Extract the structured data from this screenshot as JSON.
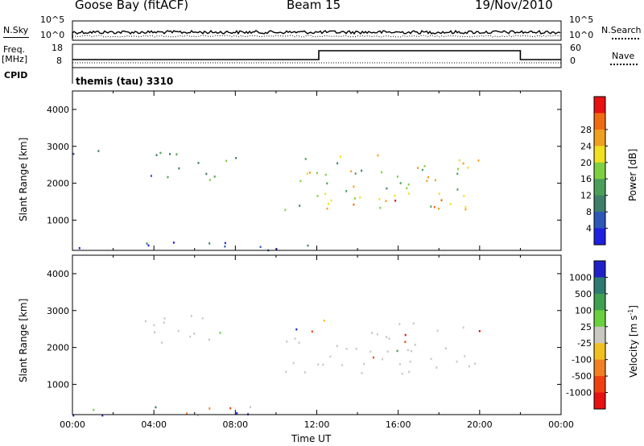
{
  "header": {
    "station": "Goose Bay (fitACF)",
    "beam": "Beam 15",
    "date": "19/Nov/2010"
  },
  "top_panels": {
    "nsky_label": "N.Sky",
    "nsky_ticks": [
      "10^5",
      "10^0"
    ],
    "nsearch_label": "N.Search",
    "nsearch_ticks": [
      "10^5",
      "10^0"
    ],
    "freq_label": "Freq.",
    "freq_unit": "[MHz]",
    "freq_ticks": [
      "18",
      "8"
    ],
    "nave_label": "Nave",
    "nave_ticks": [
      "60",
      "0"
    ],
    "cpid_label": "CPID",
    "cpid_value": "themis (tau) 3310"
  },
  "chart_data": [
    {
      "type": "heatmap",
      "title": "",
      "ylabel": "Slant Range [km]",
      "ylim": [
        180,
        4500
      ],
      "yticks": [
        "1000",
        "2000",
        "3000",
        "4000"
      ],
      "xlim": [
        "00:00",
        "24:00"
      ],
      "colorbar_label": "Power [dB]",
      "colorbar_ticks": [
        "4",
        "8",
        "12",
        "16",
        "20",
        "24",
        "28"
      ],
      "colorscale": [
        "#1f1fe0",
        "#2f57b8",
        "#3f7f6a",
        "#4aa05a",
        "#7fd040",
        "#f0e020",
        "#f0a020",
        "#f06a10",
        "#e81010"
      ],
      "features": [
        {
          "t_start": 0.0,
          "t_end": 11.8,
          "range_min": 180,
          "range_max": 450,
          "level": "low"
        },
        {
          "t_start": 3.0,
          "t_end": 8.0,
          "range_min": 2100,
          "range_max": 2900,
          "level": "low-mid"
        },
        {
          "t_start": 0.0,
          "t_end": 1.5,
          "range_min": 2700,
          "range_max": 3100,
          "level": "low"
        },
        {
          "t_start": 10.3,
          "t_end": 20.0,
          "range_min": 1300,
          "range_max": 2800,
          "level": "mid-high"
        },
        {
          "t_start": 12.0,
          "t_end": 18.5,
          "range_min": 1300,
          "range_max": 1800,
          "level": "high"
        }
      ]
    },
    {
      "type": "heatmap",
      "title": "",
      "ylabel": "Slant Range [km]",
      "xlabel": "Time UT",
      "ylim": [
        180,
        4500
      ],
      "yticks": [
        "1000",
        "2000",
        "3000",
        "4000"
      ],
      "xticks": [
        "00:00",
        "04:00",
        "08:00",
        "12:00",
        "16:00",
        "20:00",
        "00:00"
      ],
      "colorbar_label": "Velocity [m s",
      "colorbar_label_sup": "-1",
      "colorbar_label_end": "]",
      "colorbar_ticks": [
        "1000",
        "500",
        "100",
        "25",
        "-25",
        "-100",
        "-500",
        "-1000"
      ],
      "colorscale": [
        "#2020c8",
        "#2f7a70",
        "#3fa050",
        "#6ad040",
        "#c8c8c0",
        "#f0c020",
        "#f08020",
        "#f04010",
        "#e81010"
      ],
      "features": [
        {
          "t_start": 0.0,
          "t_end": 11.8,
          "range_min": 180,
          "range_max": 450,
          "level": "mixed"
        },
        {
          "t_start": 3.0,
          "t_end": 8.0,
          "range_min": 2100,
          "range_max": 2900,
          "level": "ground-scatter"
        },
        {
          "t_start": 10.3,
          "t_end": 20.0,
          "range_min": 1300,
          "range_max": 2800,
          "level": "ground-scatter"
        }
      ]
    }
  ],
  "colors": {
    "axis": "#000000",
    "ground_scatter": "#c8c8c0"
  }
}
